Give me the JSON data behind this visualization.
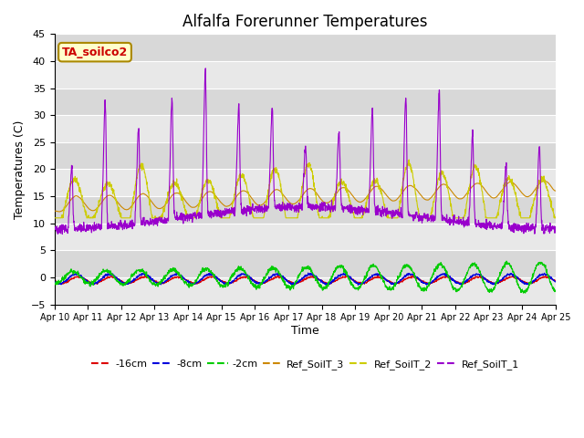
{
  "title": "Alfalfa Forerunner Temperatures",
  "xlabel": "Time",
  "ylabel": "Temperatures (C)",
  "ylim": [
    -5,
    45
  ],
  "xlim": [
    10,
    25
  ],
  "annotation_text": "TA_soilco2",
  "annotation_color": "#cc0000",
  "annotation_bg": "#ffffcc",
  "annotation_border": "#aa8800",
  "series_colors": {
    "-16cm": "#dd0000",
    "-8cm": "#0000dd",
    "-2cm": "#00cc00",
    "Ref_SoilT_3": "#cc8800",
    "Ref_SoilT_2": "#cccc00",
    "Ref_SoilT_1": "#9900cc"
  },
  "band_colors_even": "#e8e8e8",
  "band_colors_odd": "#d8d8d8",
  "background_color": "#ffffff",
  "yticks": [
    -5,
    0,
    5,
    10,
    15,
    20,
    25,
    30,
    35,
    40,
    45
  ],
  "xtick_days": [
    10,
    11,
    12,
    13,
    14,
    15,
    16,
    17,
    18,
    19,
    20,
    21,
    22,
    23,
    24,
    25
  ]
}
